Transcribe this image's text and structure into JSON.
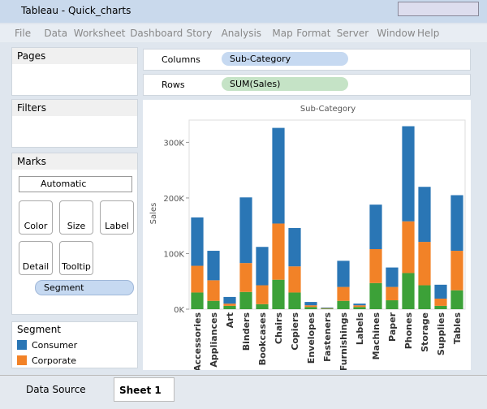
{
  "window": {
    "title": "Tableau - Quick_charts"
  },
  "menu": [
    "File",
    "Data",
    "Worksheet",
    "Dashboard",
    "Story",
    "Analysis",
    "Map",
    "Format",
    "Server",
    "Window",
    "Help"
  ],
  "panels": {
    "pages": "Pages",
    "filters": "Filters",
    "marks": "Marks",
    "mark_type": "Automatic",
    "mark_buttons": [
      "Color",
      "Size",
      "Label",
      "Detail",
      "Tooltip"
    ],
    "segment_pill": "Segment",
    "legend_title": "Segment"
  },
  "shelves": {
    "columns_label": "Columns",
    "columns_pill": "Sub-Category",
    "rows_label": "Rows",
    "rows_pill": "SUM(Sales)"
  },
  "tabs": {
    "data_source": "Data Source",
    "sheet": "Sheet 1"
  },
  "chart_data": {
    "type": "bar",
    "stacked": true,
    "title": "Sub-Category",
    "y_label": "Sales",
    "categories": [
      "Accessories",
      "Appliances",
      "Art",
      "Binders",
      "Bookcases",
      "Chairs",
      "Copiers",
      "Envelopes",
      "Fasteners",
      "Furnishings",
      "Labels",
      "Machines",
      "Paper",
      "Phones",
      "Storage",
      "Supplies",
      "Tables"
    ],
    "series": [
      {
        "color": "#3ca138",
        "values": [
          30000,
          15000,
          6000,
          31000,
          9000,
          53000,
          30000,
          4000,
          1000,
          15000,
          4000,
          47000,
          16000,
          65000,
          43000,
          6000,
          34000
        ]
      },
      {
        "name": "Corporate",
        "color": "#f28227",
        "values": [
          48000,
          37000,
          4000,
          52000,
          34000,
          101000,
          47000,
          3000,
          1000,
          25000,
          3000,
          61000,
          24000,
          93000,
          78000,
          13000,
          71000
        ]
      },
      {
        "name": "Consumer",
        "color": "#2a76b5",
        "values": [
          87000,
          53000,
          12000,
          118000,
          69000,
          172000,
          69000,
          6000,
          1000,
          47000,
          3000,
          80000,
          35000,
          171000,
          99000,
          25000,
          100000
        ]
      }
    ],
    "ylim": [
      0,
      340000
    ],
    "yticks": [
      {
        "value": 0,
        "label": "0K"
      },
      {
        "value": 100000,
        "label": "100K"
      },
      {
        "value": 200000,
        "label": "200K"
      },
      {
        "value": 300000,
        "label": "300K"
      }
    ],
    "grid": false
  }
}
